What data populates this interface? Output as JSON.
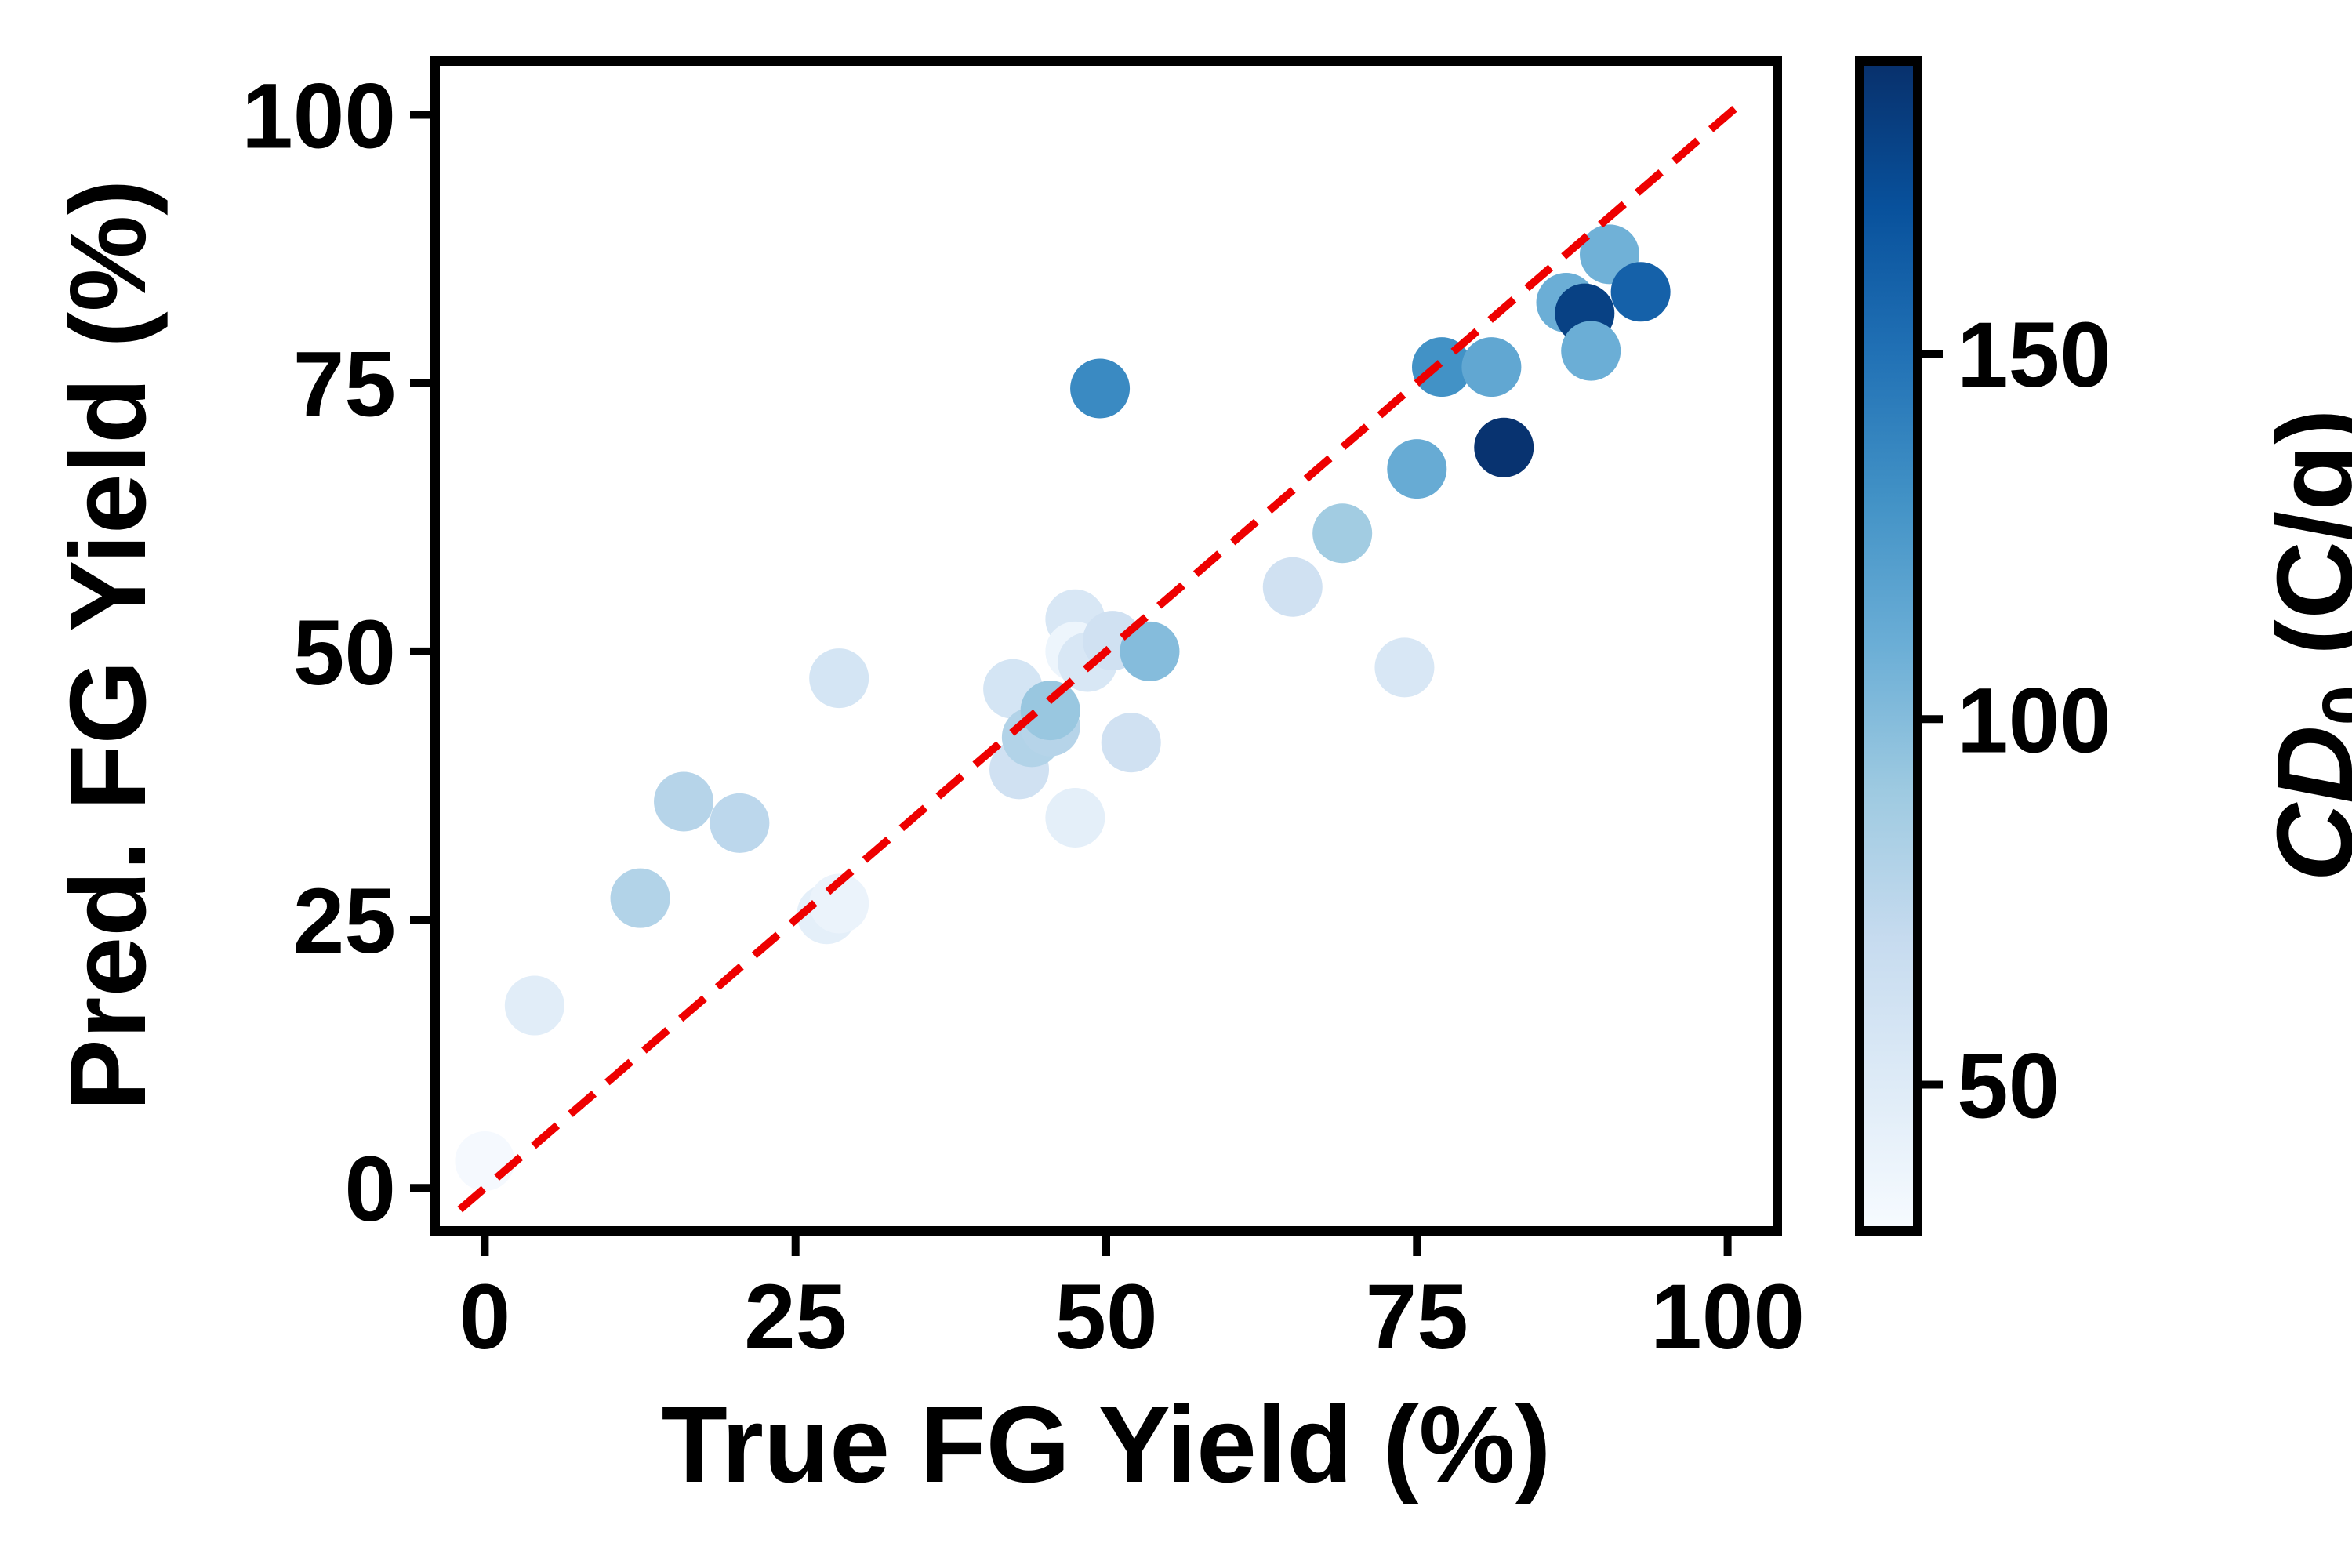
{
  "chart_data": {
    "type": "scatter",
    "title": "",
    "xlabel": "True FG Yield (%)",
    "ylabel": "Pred. FG Yield (%)",
    "xlim": [
      -4,
      104
    ],
    "ylim": [
      -4,
      105
    ],
    "xticks": [
      0,
      25,
      50,
      75,
      100
    ],
    "yticks": [
      0,
      25,
      50,
      75,
      100
    ],
    "grid": false,
    "reference_line": {
      "style": "dashed",
      "color": "#ee0000",
      "from": [
        -2,
        -2
      ],
      "to": [
        101,
        101
      ]
    },
    "colorbar": {
      "label_main": "CD",
      "label_sub": "0",
      "label_unit": " (C/g)",
      "colormap": "Blues",
      "min": 30,
      "max": 190,
      "ticks": [
        50,
        100,
        150
      ]
    },
    "points": [
      {
        "x": 0,
        "y": 2.5,
        "c": 32
      },
      {
        "x": 4,
        "y": 17,
        "c": 48
      },
      {
        "x": 12.5,
        "y": 27,
        "c": 80
      },
      {
        "x": 16,
        "y": 36,
        "c": 78
      },
      {
        "x": 20.5,
        "y": 34,
        "c": 75
      },
      {
        "x": 27.5,
        "y": 25.5,
        "c": 45
      },
      {
        "x": 28.5,
        "y": 26.5,
        "c": 40
      },
      {
        "x": 28.5,
        "y": 47.5,
        "c": 58
      },
      {
        "x": 42.5,
        "y": 46.5,
        "c": 58
      },
      {
        "x": 43,
        "y": 39,
        "c": 62
      },
      {
        "x": 44,
        "y": 42,
        "c": 80
      },
      {
        "x": 45.5,
        "y": 43,
        "c": 78
      },
      {
        "x": 45.5,
        "y": 44.5,
        "c": 92
      },
      {
        "x": 47.5,
        "y": 34.5,
        "c": 45
      },
      {
        "x": 47.5,
        "y": 53,
        "c": 55
      },
      {
        "x": 47.5,
        "y": 50,
        "c": 38
      },
      {
        "x": 48.5,
        "y": 49,
        "c": 55
      },
      {
        "x": 50.5,
        "y": 51,
        "c": 62
      },
      {
        "x": 49.5,
        "y": 74.5,
        "c": 135
      },
      {
        "x": 52,
        "y": 41.5,
        "c": 62
      },
      {
        "x": 53.5,
        "y": 50,
        "c": 100
      },
      {
        "x": 65,
        "y": 56,
        "c": 62
      },
      {
        "x": 69,
        "y": 61,
        "c": 88
      },
      {
        "x": 74,
        "y": 48.5,
        "c": 55
      },
      {
        "x": 75,
        "y": 67,
        "c": 112
      },
      {
        "x": 77,
        "y": 76.5,
        "c": 130
      },
      {
        "x": 81,
        "y": 76.5,
        "c": 115
      },
      {
        "x": 82,
        "y": 69,
        "c": 188
      },
      {
        "x": 87,
        "y": 82.5,
        "c": 110
      },
      {
        "x": 88.5,
        "y": 81.5,
        "c": 180
      },
      {
        "x": 89,
        "y": 78,
        "c": 110
      },
      {
        "x": 90.5,
        "y": 87,
        "c": 108
      },
      {
        "x": 93,
        "y": 83.5,
        "c": 160
      }
    ]
  }
}
